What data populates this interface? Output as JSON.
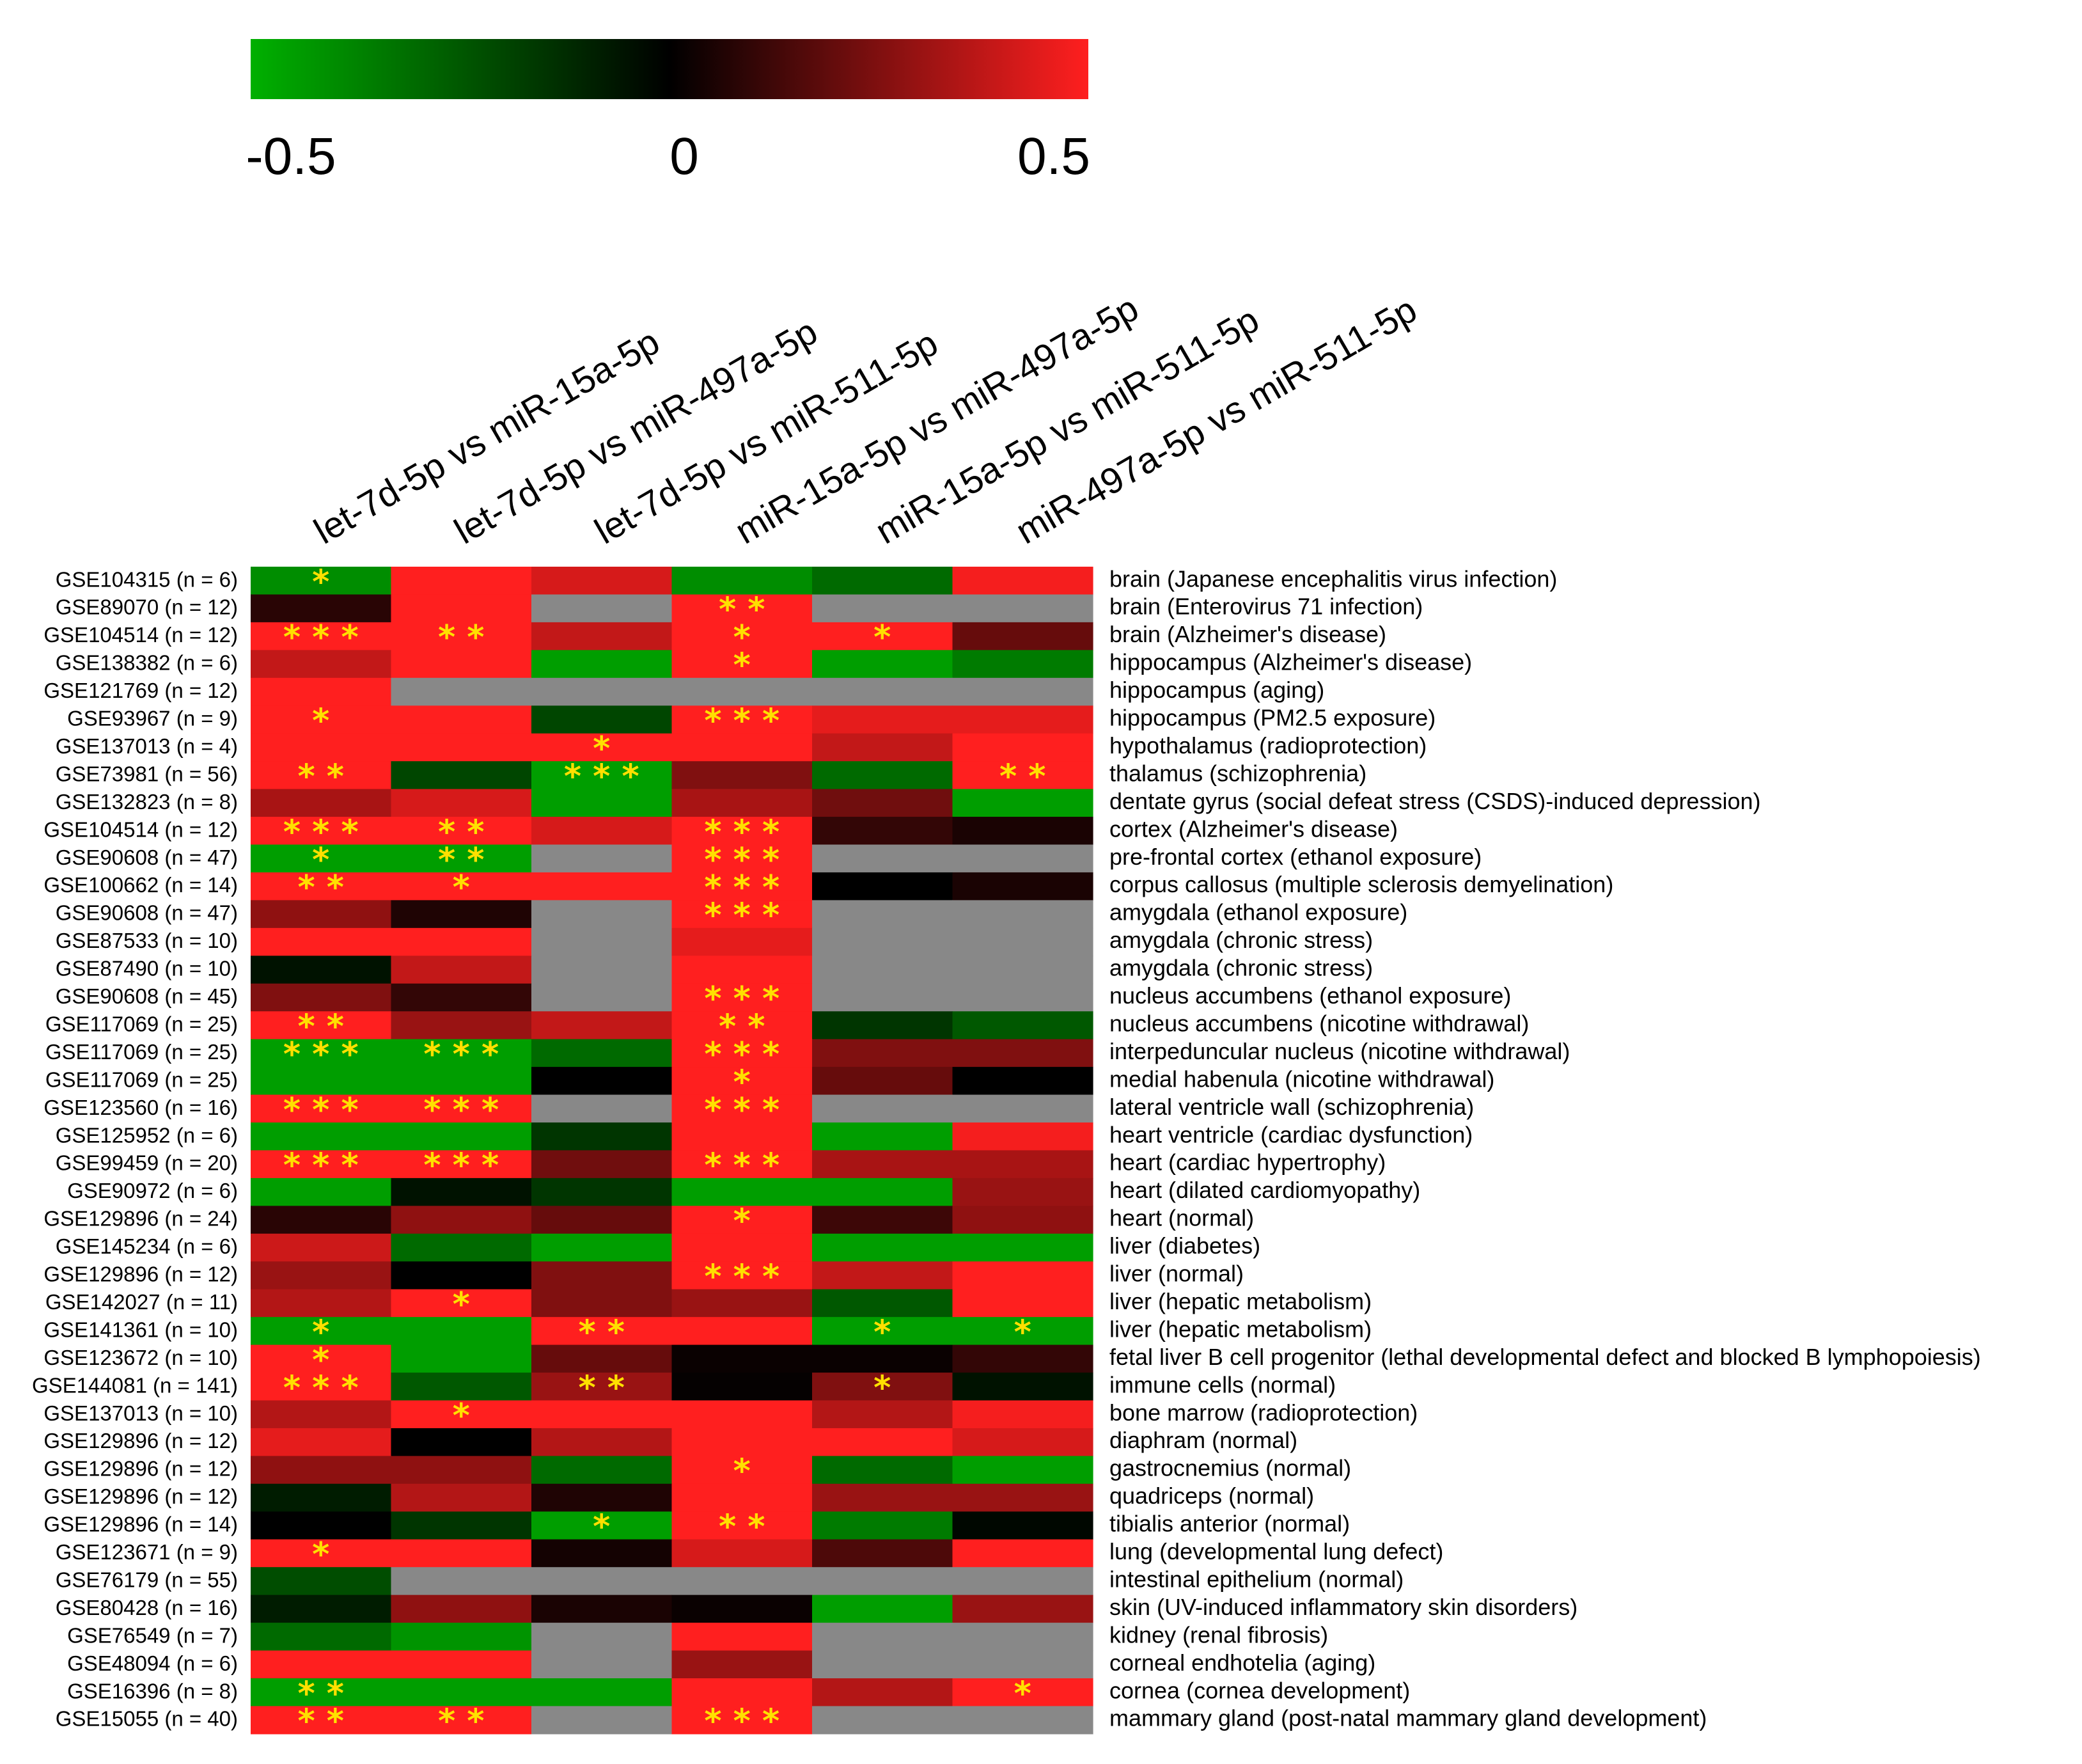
{
  "chart_data": {
    "type": "heatmap",
    "title": "",
    "colorbar": {
      "colors": [
        "#00b000",
        "#000000",
        "#ff1f1f"
      ],
      "range": [
        -0.5,
        0.5
      ],
      "tick_labels": [
        "-0.5",
        "0",
        "0.5"
      ]
    },
    "missing_color": "#888888",
    "star_color": "#ffdd00",
    "columns": [
      "let-7d-5p vs miR-15a-5p",
      "let-7d-5p vs miR-497a-5p",
      "let-7d-5p vs miR-511-5p",
      "miR-15a-5p vs miR-497a-5p",
      "miR-15a-5p vs miR-511-5p",
      "miR-497a-5p vs miR-511-5p"
    ],
    "rows": [
      {
        "dataset": "GSE104315 (n = 6)",
        "tissue": "brain (Japanese encephalitis virus infection)",
        "values": [
          -0.4,
          0.5,
          0.42,
          -0.4,
          -0.3,
          0.48
        ],
        "sig": [
          "*",
          "",
          "",
          "",
          "",
          ""
        ]
      },
      {
        "dataset": "GSE89070 (n = 12)",
        "tissue": "brain (Enterovirus 71 infection)",
        "values": [
          0.08,
          0.5,
          null,
          0.5,
          null,
          null
        ],
        "sig": [
          "",
          "",
          "",
          "**",
          "",
          ""
        ]
      },
      {
        "dataset": "GSE104514 (n = 12)",
        "tissue": "brain (Alzheimer's disease)",
        "values": [
          0.5,
          0.5,
          0.38,
          0.5,
          0.5,
          0.2
        ],
        "sig": [
          "***",
          "**",
          "",
          "*",
          "*",
          ""
        ]
      },
      {
        "dataset": "GSE138382 (n = 6)",
        "tissue": "hippocampus (Alzheimer's disease)",
        "values": [
          0.38,
          0.5,
          -0.45,
          0.5,
          -0.45,
          -0.35
        ],
        "sig": [
          "",
          "",
          "",
          "*",
          "",
          ""
        ]
      },
      {
        "dataset": "GSE121769 (n = 12)",
        "tissue": "hippocampus (aging)",
        "values": [
          0.5,
          null,
          null,
          null,
          null,
          null
        ],
        "sig": [
          "",
          "",
          "",
          "",
          "",
          ""
        ]
      },
      {
        "dataset": "GSE93967 (n = 9)",
        "tissue": "hippocampus (PM2.5 exposure)",
        "values": [
          0.5,
          0.5,
          -0.2,
          0.5,
          0.45,
          0.45
        ],
        "sig": [
          "*",
          "",
          "",
          "***",
          "",
          ""
        ]
      },
      {
        "dataset": "GSE137013 (n = 4)",
        "tissue": "hypothalamus (radioprotection)",
        "values": [
          0.5,
          0.5,
          0.5,
          0.5,
          0.38,
          0.5
        ],
        "sig": [
          "",
          "",
          "*",
          "",
          "",
          ""
        ]
      },
      {
        "dataset": "GSE73981 (n = 56)",
        "tissue": "thalamus (schizophrenia)",
        "values": [
          0.5,
          -0.2,
          -0.45,
          0.25,
          -0.3,
          0.5
        ],
        "sig": [
          "**",
          "",
          "***",
          "",
          "",
          "**"
        ]
      },
      {
        "dataset": "GSE132823 (n = 8)",
        "tissue": "dentate gyrus (social defeat stress (CSDS)-induced depression)",
        "values": [
          0.33,
          0.42,
          -0.45,
          0.33,
          0.22,
          -0.45
        ],
        "sig": [
          "",
          "",
          "",
          "",
          "",
          ""
        ]
      },
      {
        "dataset": "GSE104514 (n = 12)",
        "tissue": "cortex (Alzheimer's disease)",
        "values": [
          0.5,
          0.5,
          0.42,
          0.5,
          0.1,
          0.05
        ],
        "sig": [
          "***",
          "**",
          "",
          "***",
          "",
          ""
        ]
      },
      {
        "dataset": "GSE90608 (n = 47)",
        "tissue": "pre-frontal cortex (ethanol exposure)",
        "values": [
          -0.45,
          -0.45,
          null,
          0.5,
          null,
          null
        ],
        "sig": [
          "*",
          "**",
          "",
          "***",
          "",
          ""
        ]
      },
      {
        "dataset": "GSE100662 (n = 14)",
        "tissue": "corpus callosus (multiple sclerosis demyelination)",
        "values": [
          0.5,
          0.5,
          0.5,
          0.5,
          0.0,
          0.05
        ],
        "sig": [
          "**",
          "*",
          "",
          "***",
          "",
          ""
        ]
      },
      {
        "dataset": "GSE90608 (n = 47)",
        "tissue": "amygdala (ethanol exposure)",
        "values": [
          0.28,
          0.06,
          null,
          0.5,
          null,
          null
        ],
        "sig": [
          "",
          "",
          "",
          "***",
          "",
          ""
        ]
      },
      {
        "dataset": "GSE87533 (n = 10)",
        "tissue": "amygdala (chronic stress)",
        "values": [
          0.5,
          0.5,
          null,
          0.45,
          null,
          null
        ],
        "sig": [
          "",
          "",
          "",
          "",
          "",
          ""
        ]
      },
      {
        "dataset": "GSE87490 (n = 10)",
        "tissue": "amygdala (chronic stress)",
        "values": [
          -0.05,
          0.38,
          null,
          0.5,
          null,
          null
        ],
        "sig": [
          "",
          "",
          "",
          "",
          "",
          ""
        ]
      },
      {
        "dataset": "GSE90608 (n = 45)",
        "tissue": "nucleus accumbens (ethanol exposure)",
        "values": [
          0.25,
          0.1,
          null,
          0.5,
          null,
          null
        ],
        "sig": [
          "",
          "",
          "",
          "***",
          "",
          ""
        ]
      },
      {
        "dataset": "GSE117069 (n = 25)",
        "tissue": "nucleus accumbens (nicotine withdrawal)",
        "values": [
          0.5,
          0.3,
          0.38,
          0.5,
          -0.15,
          -0.25
        ],
        "sig": [
          "**",
          "",
          "",
          "**",
          "",
          ""
        ]
      },
      {
        "dataset": "GSE117069 (n = 25)",
        "tissue": "interpeduncular nucleus (nicotine withdrawal)",
        "values": [
          -0.45,
          -0.45,
          -0.3,
          0.5,
          0.25,
          0.25
        ],
        "sig": [
          "***",
          "***",
          "",
          "***",
          "",
          ""
        ]
      },
      {
        "dataset": "GSE117069 (n = 25)",
        "tissue": "medial habenula (nicotine withdrawal)",
        "values": [
          -0.45,
          -0.45,
          0.0,
          0.5,
          0.2,
          0.0
        ],
        "sig": [
          "",
          "",
          "",
          "*",
          "",
          ""
        ]
      },
      {
        "dataset": "GSE123560 (n = 16)",
        "tissue": "lateral ventricle wall (schizophrenia)",
        "values": [
          0.5,
          0.5,
          null,
          0.5,
          null,
          null
        ],
        "sig": [
          "***",
          "***",
          "",
          "***",
          "",
          ""
        ]
      },
      {
        "dataset": "GSE125952 (n = 6)",
        "tissue": "heart ventricle (cardiac dysfunction)",
        "values": [
          -0.45,
          -0.45,
          -0.15,
          0.5,
          -0.45,
          0.48
        ],
        "sig": [
          "",
          "",
          "",
          "",
          "",
          ""
        ]
      },
      {
        "dataset": "GSE99459 (n = 20)",
        "tissue": "heart (cardiac hypertrophy)",
        "values": [
          0.5,
          0.5,
          0.22,
          0.5,
          0.33,
          0.33
        ],
        "sig": [
          "***",
          "***",
          "",
          "***",
          "",
          ""
        ]
      },
      {
        "dataset": "GSE90972 (n = 6)",
        "tissue": "heart (dilated cardiomyopathy)",
        "values": [
          -0.45,
          -0.05,
          -0.15,
          -0.45,
          -0.45,
          0.3
        ],
        "sig": [
          "",
          "",
          "",
          "",
          "",
          ""
        ]
      },
      {
        "dataset": "GSE129896 (n = 24)",
        "tissue": "heart (normal)",
        "values": [
          0.08,
          0.28,
          0.2,
          0.5,
          0.12,
          0.28
        ],
        "sig": [
          "",
          "",
          "",
          "*",
          "",
          ""
        ]
      },
      {
        "dataset": "GSE145234 (n = 6)",
        "tissue": "liver (diabetes)",
        "values": [
          0.4,
          -0.3,
          -0.45,
          0.5,
          -0.45,
          -0.45
        ],
        "sig": [
          "",
          "",
          "",
          "",
          "",
          ""
        ]
      },
      {
        "dataset": "GSE129896 (n = 12)",
        "tissue": "liver (normal)",
        "values": [
          0.3,
          0.0,
          0.25,
          0.5,
          0.38,
          0.5
        ],
        "sig": [
          "",
          "",
          "",
          "***",
          "",
          ""
        ]
      },
      {
        "dataset": "GSE142027 (n = 11)",
        "tissue": "liver (hepatic metabolism)",
        "values": [
          0.35,
          0.5,
          0.25,
          0.3,
          -0.25,
          0.5
        ],
        "sig": [
          "",
          "*",
          "",
          "",
          "",
          ""
        ]
      },
      {
        "dataset": "GSE141361 (n = 10)",
        "tissue": "liver (hepatic metabolism)",
        "values": [
          -0.45,
          -0.45,
          0.5,
          0.5,
          -0.45,
          -0.45
        ],
        "sig": [
          "*",
          "",
          "**",
          "",
          "*",
          "*"
        ]
      },
      {
        "dataset": "GSE123672 (n = 10)",
        "tissue": "fetal liver B cell progenitor (lethal developmental defect and blocked B lymphopoiesis)",
        "values": [
          0.5,
          -0.45,
          0.2,
          0.02,
          0.02,
          0.1
        ],
        "sig": [
          "*",
          "",
          "",
          "",
          "",
          ""
        ]
      },
      {
        "dataset": "GSE144081 (n = 141)",
        "tissue": "immune cells (normal)",
        "values": [
          0.5,
          -0.25,
          0.3,
          0.01,
          0.25,
          -0.05
        ],
        "sig": [
          "***",
          "",
          "**",
          "",
          "*",
          ""
        ]
      },
      {
        "dataset": "GSE137013 (n = 10)",
        "tissue": "bone marrow (radioprotection)",
        "values": [
          0.35,
          0.5,
          0.5,
          0.5,
          0.35,
          0.48
        ],
        "sig": [
          "",
          "*",
          "",
          "",
          "",
          ""
        ]
      },
      {
        "dataset": "GSE129896 (n = 12)",
        "tissue": "diaphram (normal)",
        "values": [
          0.45,
          0.0,
          0.35,
          0.5,
          0.5,
          0.42
        ],
        "sig": [
          "",
          "",
          "",
          "",
          "",
          ""
        ]
      },
      {
        "dataset": "GSE129896 (n = 12)",
        "tissue": "gastrocnemius (normal)",
        "values": [
          0.28,
          0.28,
          -0.3,
          0.5,
          -0.3,
          -0.45
        ],
        "sig": [
          "",
          "",
          "",
          "*",
          "",
          ""
        ]
      },
      {
        "dataset": "GSE129896 (n = 12)",
        "tissue": "quadriceps (normal)",
        "values": [
          -0.08,
          0.35,
          0.06,
          0.5,
          0.3,
          0.3
        ],
        "sig": [
          "",
          "",
          "",
          "",
          "",
          ""
        ]
      },
      {
        "dataset": "GSE129896 (n = 14)",
        "tissue": "tibialis anterior (normal)",
        "values": [
          0.0,
          -0.15,
          -0.45,
          0.5,
          -0.35,
          -0.02
        ],
        "sig": [
          "",
          "",
          "*",
          "**",
          "",
          ""
        ]
      },
      {
        "dataset": "GSE123671 (n = 9)",
        "tissue": "lung (developmental lung defect)",
        "values": [
          0.5,
          0.5,
          0.04,
          0.42,
          0.15,
          0.5
        ],
        "sig": [
          "*",
          "",
          "",
          "",
          "",
          ""
        ]
      },
      {
        "dataset": "GSE76179 (n = 55)",
        "tissue": "intestinal epithelium (normal)",
        "values": [
          -0.22,
          null,
          null,
          null,
          null,
          null
        ],
        "sig": [
          "",
          "",
          "",
          "",
          "",
          ""
        ]
      },
      {
        "dataset": "GSE80428 (n = 16)",
        "tissue": "skin (UV-induced inflammatory skin disorders)",
        "values": [
          -0.08,
          0.28,
          0.05,
          0.02,
          -0.45,
          0.3
        ],
        "sig": [
          "",
          "",
          "",
          "",
          "",
          ""
        ]
      },
      {
        "dataset": "GSE76549 (n = 7)",
        "tissue": "kidney (renal fibrosis)",
        "values": [
          -0.3,
          -0.42,
          null,
          0.5,
          null,
          null
        ],
        "sig": [
          "",
          "",
          "",
          "",
          "",
          ""
        ]
      },
      {
        "dataset": "GSE48094 (n = 6)",
        "tissue": "corneal endhotelia (aging)",
        "values": [
          0.5,
          0.5,
          null,
          0.3,
          null,
          null
        ],
        "sig": [
          "",
          "",
          "",
          "",
          "",
          ""
        ]
      },
      {
        "dataset": "GSE16396 (n = 8)",
        "tissue": "cornea (cornea development)",
        "values": [
          -0.45,
          -0.45,
          -0.45,
          0.5,
          0.35,
          0.5
        ],
        "sig": [
          "**",
          "",
          "",
          "",
          "",
          "*"
        ]
      },
      {
        "dataset": "GSE15055 (n = 40)",
        "tissue": "mammary gland (post-natal mammary gland development)",
        "values": [
          0.5,
          0.5,
          null,
          0.5,
          null,
          null
        ],
        "sig": [
          "**",
          "**",
          "",
          "***",
          "",
          ""
        ]
      }
    ]
  }
}
